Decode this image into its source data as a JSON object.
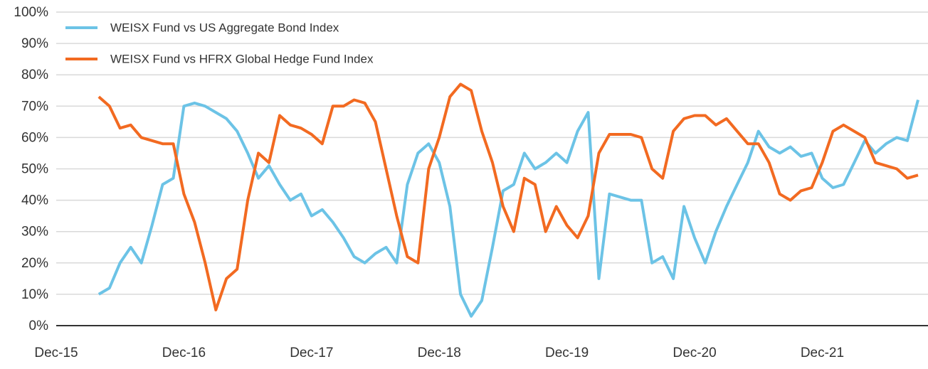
{
  "chart_data": {
    "type": "line",
    "x": [
      "Apr-16",
      "May-16",
      "Jun-16",
      "Jul-16",
      "Aug-16",
      "Sep-16",
      "Oct-16",
      "Nov-16",
      "Dec-16",
      "Jan-17",
      "Feb-17",
      "Mar-17",
      "Apr-17",
      "May-17",
      "Jun-17",
      "Jul-17",
      "Aug-17",
      "Sep-17",
      "Oct-17",
      "Nov-17",
      "Dec-17",
      "Jan-18",
      "Feb-18",
      "Mar-18",
      "Apr-18",
      "May-18",
      "Jun-18",
      "Jul-18",
      "Aug-18",
      "Sep-18",
      "Oct-18",
      "Nov-18",
      "Dec-18",
      "Jan-19",
      "Feb-19",
      "Mar-19",
      "Apr-19",
      "May-19",
      "Jun-19",
      "Jul-19",
      "Aug-19",
      "Sep-19",
      "Oct-19",
      "Nov-19",
      "Dec-19",
      "Jan-20",
      "Feb-20",
      "Mar-20",
      "Apr-20",
      "May-20",
      "Jun-20",
      "Jul-20",
      "Aug-20",
      "Sep-20",
      "Oct-20",
      "Nov-20",
      "Dec-20",
      "Jan-21",
      "Feb-21",
      "Mar-21",
      "Apr-21",
      "May-21",
      "Jun-21",
      "Jul-21",
      "Aug-21",
      "Sep-21",
      "Oct-21",
      "Nov-21",
      "Dec-21",
      "Jan-22",
      "Feb-22",
      "Mar-22",
      "Apr-22",
      "May-22",
      "Jun-22",
      "Jul-22",
      "Aug-22",
      "Sep-22"
    ],
    "series": [
      {
        "name": "WEISX Fund vs US Aggregate Bond Index",
        "color": "#6cc3e6",
        "values": [
          10,
          12,
          20,
          25,
          20,
          32,
          45,
          47,
          70,
          71,
          70,
          68,
          66,
          62,
          55,
          47,
          51,
          45,
          40,
          42,
          35,
          37,
          33,
          28,
          22,
          20,
          23,
          25,
          20,
          45,
          55,
          58,
          52,
          38,
          10,
          3,
          8,
          25,
          43,
          45,
          55,
          50,
          52,
          55,
          52,
          62,
          68,
          15,
          42,
          41,
          40,
          40,
          20,
          22,
          15,
          38,
          28,
          20,
          30,
          38,
          45,
          52,
          62,
          57,
          55,
          57,
          54,
          55,
          47,
          44,
          45,
          52,
          59,
          55,
          58,
          60,
          59,
          72
        ]
      },
      {
        "name": "WEISX Fund vs HFRX Global Hedge Fund Index",
        "color": "#f26a21",
        "values": [
          73,
          70,
          63,
          64,
          60,
          59,
          58,
          58,
          42,
          33,
          20,
          5,
          15,
          18,
          40,
          55,
          52,
          67,
          64,
          63,
          61,
          58,
          70,
          70,
          72,
          71,
          65,
          50,
          35,
          22,
          20,
          50,
          60,
          73,
          77,
          75,
          62,
          52,
          38,
          30,
          47,
          45,
          30,
          38,
          32,
          28,
          35,
          55,
          61,
          61,
          61,
          60,
          50,
          47,
          62,
          66,
          67,
          67,
          64,
          66,
          62,
          58,
          58,
          52,
          42,
          40,
          43,
          44,
          52,
          62,
          64,
          62,
          60,
          52,
          51,
          50,
          47,
          48
        ]
      }
    ],
    "xlim": [
      "Dec-15",
      "Sep-22"
    ],
    "xticks": [
      "Dec-15",
      "Dec-16",
      "Dec-17",
      "Dec-18",
      "Dec-19",
      "Dec-20",
      "Dec-21"
    ],
    "ylim": [
      0,
      100
    ],
    "yticks": [
      {
        "value": 0,
        "label": "0%"
      },
      {
        "value": 10,
        "label": "10%"
      },
      {
        "value": 20,
        "label": "20%"
      },
      {
        "value": 30,
        "label": "30%"
      },
      {
        "value": 40,
        "label": "40%"
      },
      {
        "value": 50,
        "label": "50%"
      },
      {
        "value": 60,
        "label": "60%"
      },
      {
        "value": 70,
        "label": "70%"
      },
      {
        "value": 80,
        "label": "80%"
      },
      {
        "value": 90,
        "label": "90%"
      },
      {
        "value": 100,
        "label": "100%"
      }
    ],
    "grid": true,
    "legend": "upper left"
  }
}
